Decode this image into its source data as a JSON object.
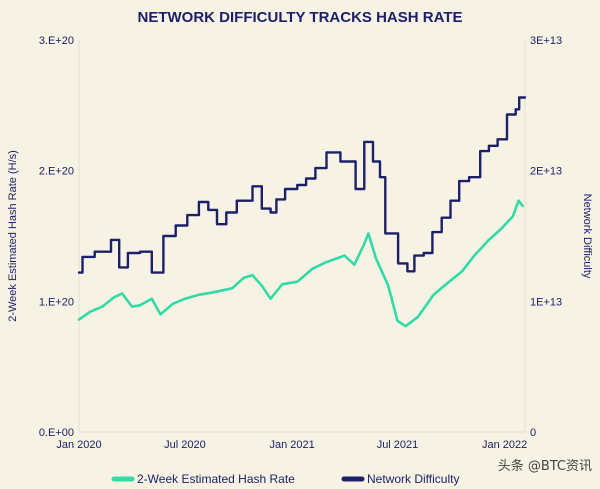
{
  "chart_data": {
    "type": "line",
    "title": "NETWORK DIFFICULTY TRACKS HASH RATE",
    "y_left_label": "2-Week Estimated Hash Rate (H/s)",
    "y_right_label": "Network Difficulty",
    "x_range": [
      "2020-01-01",
      "2022-02-05"
    ],
    "x_ticks": [
      {
        "date": "2020-01-01",
        "label": "Jan 2020"
      },
      {
        "date": "2020-07-01",
        "label": "Jul 2020"
      },
      {
        "date": "2021-01-01",
        "label": "Jan 2021"
      },
      {
        "date": "2021-07-01",
        "label": "Jul 2021"
      },
      {
        "date": "2022-01-01",
        "label": "Jan 2022"
      }
    ],
    "y_left_range": [
      0,
      3e+20
    ],
    "y_left_ticks": [
      {
        "value": 0,
        "label": "0.E+00"
      },
      {
        "value": 1e+20,
        "label": "1.E+20"
      },
      {
        "value": 2e+20,
        "label": "2.E+20"
      },
      {
        "value": 3e+20,
        "label": "3.E+20"
      }
    ],
    "y_right_range": [
      0,
      30000000000000.0
    ],
    "y_right_ticks": [
      {
        "value": 0,
        "label": "0"
      },
      {
        "value": 10000000000000.0,
        "label": "1E+13"
      },
      {
        "value": 20000000000000.0,
        "label": "2E+13"
      },
      {
        "value": 30000000000000.0,
        "label": "3E+13"
      }
    ],
    "grid": false,
    "legend_position": "bottom",
    "series": [
      {
        "name": "2-Week Estimated Hash Rate",
        "axis": "left",
        "color": "#33d9a6",
        "step": false,
        "points": [
          [
            "2020-01-01",
            8.6e+19
          ],
          [
            "2020-01-20",
            9.2e+19
          ],
          [
            "2020-02-10",
            9.6e+19
          ],
          [
            "2020-03-01",
            1.03e+20
          ],
          [
            "2020-03-15",
            1.06e+20
          ],
          [
            "2020-04-01",
            9.6e+19
          ],
          [
            "2020-04-15",
            9.7e+19
          ],
          [
            "2020-05-05",
            1.02e+20
          ],
          [
            "2020-05-20",
            9e+19
          ],
          [
            "2020-06-10",
            9.8e+19
          ],
          [
            "2020-07-01",
            1.02e+20
          ],
          [
            "2020-07-25",
            1.05e+20
          ],
          [
            "2020-08-20",
            1.07e+20
          ],
          [
            "2020-09-20",
            1.1e+20
          ],
          [
            "2020-10-10",
            1.18e+20
          ],
          [
            "2020-10-25",
            1.2e+20
          ],
          [
            "2020-11-10",
            1.12e+20
          ],
          [
            "2020-11-25",
            1.02e+20
          ],
          [
            "2020-12-15",
            1.13e+20
          ],
          [
            "2021-01-10",
            1.15e+20
          ],
          [
            "2021-02-05",
            1.25e+20
          ],
          [
            "2021-03-01",
            1.3e+20
          ],
          [
            "2021-04-01",
            1.35e+20
          ],
          [
            "2021-04-18",
            1.28e+20
          ],
          [
            "2021-05-05",
            1.44e+20
          ],
          [
            "2021-05-12",
            1.52e+20
          ],
          [
            "2021-05-25",
            1.33e+20
          ],
          [
            "2021-06-15",
            1.12e+20
          ],
          [
            "2021-07-01",
            8.5e+19
          ],
          [
            "2021-07-15",
            8.1e+19
          ],
          [
            "2021-08-05",
            8.8e+19
          ],
          [
            "2021-09-01",
            1.05e+20
          ],
          [
            "2021-09-25",
            1.14e+20
          ],
          [
            "2021-10-20",
            1.23e+20
          ],
          [
            "2021-11-10",
            1.35e+20
          ],
          [
            "2021-12-05",
            1.47e+20
          ],
          [
            "2021-12-25",
            1.55e+20
          ],
          [
            "2022-01-15",
            1.65e+20
          ],
          [
            "2022-01-25",
            1.77e+20
          ],
          [
            "2022-02-01",
            1.73e+20
          ]
        ]
      },
      {
        "name": "Network Difficulty",
        "axis": "right",
        "color": "#1c2068",
        "step": true,
        "points": [
          [
            "2020-01-01",
            12200000000000.0
          ],
          [
            "2020-01-07",
            13400000000000.0
          ],
          [
            "2020-01-28",
            13800000000000.0
          ],
          [
            "2020-02-25",
            14700000000000.0
          ],
          [
            "2020-03-10",
            12600000000000.0
          ],
          [
            "2020-03-25",
            13700000000000.0
          ],
          [
            "2020-04-15",
            13800000000000.0
          ],
          [
            "2020-05-05",
            12200000000000.0
          ],
          [
            "2020-05-25",
            15000000000000.0
          ],
          [
            "2020-06-15",
            15800000000000.0
          ],
          [
            "2020-07-05",
            16600000000000.0
          ],
          [
            "2020-07-25",
            17600000000000.0
          ],
          [
            "2020-08-10",
            17000000000000.0
          ],
          [
            "2020-08-25",
            15900000000000.0
          ],
          [
            "2020-09-10",
            16800000000000.0
          ],
          [
            "2020-09-28",
            17700000000000.0
          ],
          [
            "2020-10-25",
            18800000000000.0
          ],
          [
            "2020-11-10",
            17100000000000.0
          ],
          [
            "2020-11-25",
            16800000000000.0
          ],
          [
            "2020-12-05",
            17800000000000.0
          ],
          [
            "2020-12-20",
            18600000000000.0
          ],
          [
            "2021-01-10",
            18900000000000.0
          ],
          [
            "2021-01-25",
            19400000000000.0
          ],
          [
            "2021-02-10",
            20200000000000.0
          ],
          [
            "2021-03-01",
            21400000000000.0
          ],
          [
            "2021-03-25",
            20700000000000.0
          ],
          [
            "2021-04-20",
            18600000000000.0
          ],
          [
            "2021-05-05",
            22200000000000.0
          ],
          [
            "2021-05-20",
            20700000000000.0
          ],
          [
            "2021-06-01",
            19500000000000.0
          ],
          [
            "2021-06-10",
            15200000000000.0
          ],
          [
            "2021-07-02",
            12900000000000.0
          ],
          [
            "2021-07-18",
            12300000000000.0
          ],
          [
            "2021-07-30",
            13500000000000.0
          ],
          [
            "2021-08-15",
            13700000000000.0
          ],
          [
            "2021-08-30",
            15300000000000.0
          ],
          [
            "2021-09-15",
            16400000000000.0
          ],
          [
            "2021-09-30",
            17700000000000.0
          ],
          [
            "2021-10-15",
            19200000000000.0
          ],
          [
            "2021-11-01",
            19500000000000.0
          ],
          [
            "2021-11-20",
            21500000000000.0
          ],
          [
            "2021-12-05",
            21900000000000.0
          ],
          [
            "2021-12-20",
            22400000000000.0
          ],
          [
            "2022-01-05",
            24300000000000.0
          ],
          [
            "2022-01-20",
            24700000000000.0
          ],
          [
            "2022-01-26",
            25600000000000.0
          ],
          [
            "2022-02-05",
            25600000000000.0
          ]
        ]
      }
    ]
  },
  "watermark": "头条 @BTC资讯"
}
